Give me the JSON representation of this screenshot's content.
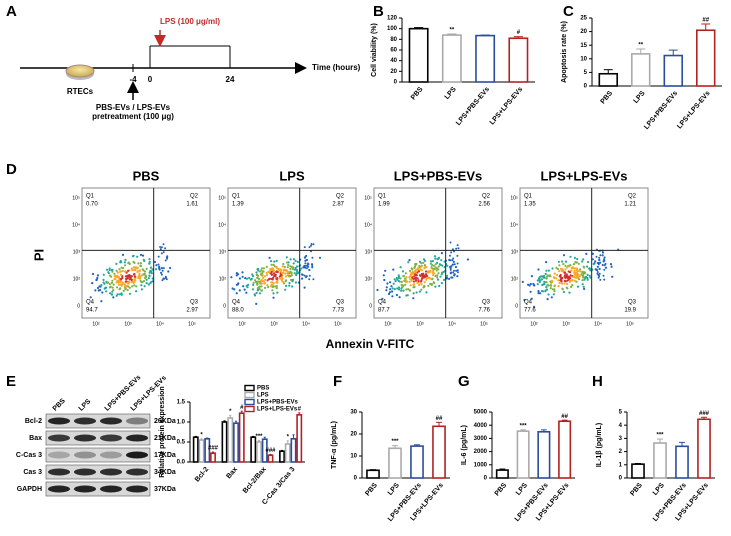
{
  "panel_labels": [
    "A",
    "B",
    "C",
    "D",
    "E",
    "F",
    "G",
    "H"
  ],
  "timeline": {
    "treatment": "LPS (100 μg/ml)",
    "axis_label": "Time (hours)",
    "ticks": [
      "-4",
      "0",
      "24"
    ],
    "cells": "RTECs",
    "pretreatment": [
      "PBS-EVs / LPS-EVs",
      "pretreatment (100 μg)"
    ]
  },
  "chart_data": [
    {
      "type": "bar",
      "y_label": "Cell viability (%)",
      "categories": [
        "PBS",
        "LPS",
        "LPS+PBS-EVs",
        "LPS+LPS-EVs"
      ],
      "values": [
        100,
        88,
        87,
        82
      ],
      "errors": [
        2,
        2,
        1,
        3
      ],
      "colors": [
        "#000000",
        "#aaaaaa",
        "#2a4d9b",
        "#b22222"
      ],
      "annotations": [
        null,
        "**",
        null,
        "#"
      ],
      "ylim": [
        0,
        120
      ],
      "yticks": [
        0,
        20,
        40,
        60,
        80,
        100,
        120
      ]
    },
    {
      "type": "bar",
      "y_label": "Apoptosis rate (%)",
      "categories": [
        "PBS",
        "LPS",
        "LPS+PBS-EVs",
        "LPS+LPS-EVs"
      ],
      "values": [
        4.5,
        11.8,
        11.2,
        20.5
      ],
      "errors": [
        1.5,
        1.8,
        2,
        2.3
      ],
      "colors": [
        "#000000",
        "#aaaaaa",
        "#2a4d9b",
        "#b22222"
      ],
      "annotations": [
        null,
        "**",
        null,
        "##"
      ],
      "ylim": [
        0,
        25
      ],
      "yticks": [
        0,
        5,
        10,
        15,
        20,
        25
      ]
    },
    {
      "type": "bar",
      "y_label": "Relative protein expression",
      "categories": [
        "Bcl-2",
        "Bax",
        "Bcl-2/Bax",
        "C-Cas 3/Cas 3"
      ],
      "series": [
        {
          "name": "PBS",
          "color": "#000000",
          "values": [
            0.62,
            1.0,
            0.62,
            0.27
          ],
          "errors": [
            0.02,
            0.03,
            0.02,
            0.02
          ],
          "annotations": [
            null,
            null,
            null,
            null
          ]
        },
        {
          "name": "LPS",
          "color": "#aaaaaa",
          "values": [
            0.55,
            1.1,
            0.5,
            0.45
          ],
          "errors": [
            0.03,
            0.06,
            0.04,
            0.08
          ],
          "annotations": [
            "*",
            "*",
            "***",
            "*"
          ]
        },
        {
          "name": "LPS+PBS-EVs",
          "color": "#2a4d9b",
          "values": [
            0.58,
            0.97,
            0.57,
            0.58
          ],
          "errors": [
            0.02,
            0.05,
            0.05,
            0.1
          ],
          "annotations": [
            null,
            null,
            null,
            null
          ]
        },
        {
          "name": "LPS+LPS-EVs",
          "color": "#b22222",
          "values": [
            0.22,
            1.22,
            0.17,
            1.18
          ],
          "errors": [
            0.03,
            0.05,
            0.02,
            0.05
          ],
          "annotations": [
            "###",
            "#",
            "###",
            "#"
          ]
        }
      ],
      "ylim": [
        0,
        1.5
      ],
      "yticks": [
        {
          "value": 0,
          "label": "0.0"
        },
        0.5,
        {
          "value": 1,
          "label": "1.0"
        },
        1.5
      ]
    },
    {
      "type": "bar",
      "y_label": "TNF-α (pg/mL)",
      "categories": [
        "PBS",
        "LPS",
        "LPS+PBS-EVs",
        "LPS+LPS-EVs"
      ],
      "values": [
        3.5,
        13.5,
        14.5,
        23.5
      ],
      "errors": [
        0.3,
        1.2,
        0.6,
        1.8
      ],
      "colors": [
        "#000000",
        "#aaaaaa",
        "#2a4d9b",
        "#b22222"
      ],
      "annotations": [
        null,
        "***",
        null,
        "##"
      ],
      "ylim": [
        0,
        30
      ],
      "yticks": [
        0,
        10,
        20,
        30
      ]
    },
    {
      "type": "bar",
      "y_label": "IL-6 (pg/mL)",
      "categories": [
        "PBS",
        "LPS",
        "LPS+PBS-EVs",
        "LPS+LPS-EVs"
      ],
      "values": [
        600,
        3550,
        3500,
        4300
      ],
      "errors": [
        80,
        100,
        150,
        80
      ],
      "colors": [
        "#000000",
        "#aaaaaa",
        "#2a4d9b",
        "#b22222"
      ],
      "annotations": [
        null,
        "***",
        null,
        "##"
      ],
      "ylim": [
        0,
        5000
      ],
      "yticks": [
        0,
        1000,
        2000,
        3000,
        4000,
        5000
      ]
    },
    {
      "type": "bar",
      "y_label": "IL-1β (pg/mL)",
      "categories": [
        "PBS",
        "LPS",
        "LPS+PBS-EVs",
        "LPS+LPS-EVs"
      ],
      "values": [
        1.05,
        2.65,
        2.4,
        4.45
      ],
      "errors": [
        0.05,
        0.3,
        0.3,
        0.15
      ],
      "colors": [
        "#000000",
        "#aaaaaa",
        "#2a4d9b",
        "#b22222"
      ],
      "annotations": [
        null,
        "***",
        null,
        "###"
      ],
      "ylim": [
        0,
        5
      ],
      "yticks": [
        0,
        1,
        2,
        3,
        4,
        5
      ]
    }
  ],
  "flow": {
    "y_label": "PI",
    "x_label": "Annexin V-FITC",
    "quadrant_names": [
      "Q1",
      "Q2",
      "Q3",
      "Q4"
    ],
    "yticks": [
      "10⁵",
      "10⁴",
      "10³",
      "10²",
      "0"
    ],
    "xticks": [
      "10²",
      "10³",
      "10⁴",
      "10⁵"
    ],
    "plots": [
      {
        "title": "PBS",
        "quadrants": [
          "0.70",
          "1.61",
          "2.97",
          "94.7"
        ]
      },
      {
        "title": "LPS",
        "quadrants": [
          "1.39",
          "2.87",
          "7.73",
          "88.0"
        ]
      },
      {
        "title": "LPS+PBS-EVs",
        "quadrants": [
          "1.99",
          "2.56",
          "7.76",
          "87.7"
        ]
      },
      {
        "title": "LPS+LPS-EVs",
        "quadrants": [
          "1.35",
          "1.21",
          "19.9",
          "77.6"
        ]
      }
    ]
  },
  "blot": {
    "lanes": [
      "PBS",
      "LPS",
      "LPS+PBS-EVs",
      "LPS+LPS-EVs"
    ],
    "rows": [
      {
        "name": "Bcl-2",
        "size": "26KDa"
      },
      {
        "name": "Bax",
        "size": "21KDa"
      },
      {
        "name": "C-Cas 3",
        "size": "17KDa"
      },
      {
        "name": "Cas 3",
        "size": "34KDa"
      },
      {
        "name": "GAPDH",
        "size": "37KDa"
      }
    ]
  }
}
